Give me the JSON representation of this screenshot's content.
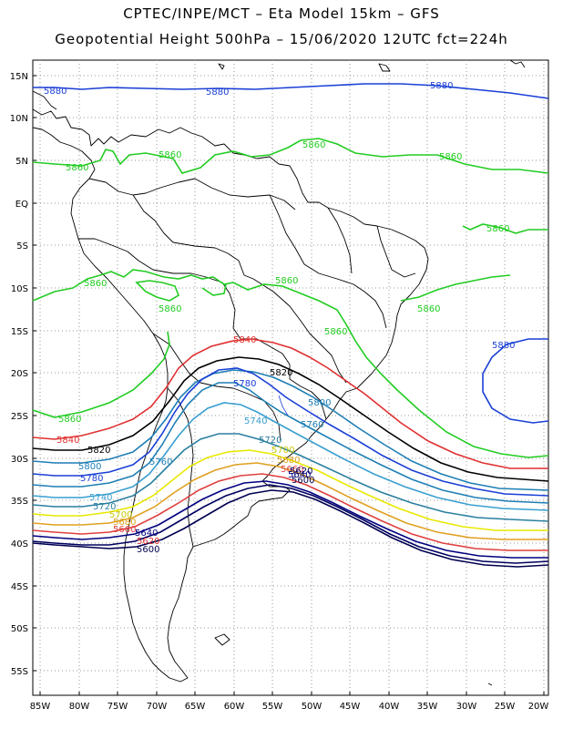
{
  "title_line1": "CPTEC/INPE/MCT –  Eta Model 15km – GFS",
  "title_line2": "Geopotential Height 500hPa – 15/06/2020 12UTC fct=224h",
  "lat_labels": [
    "15N",
    "10N",
    "5N",
    "EQ",
    "5S",
    "10S",
    "15S",
    "20S",
    "25S",
    "30S",
    "35S",
    "40S",
    "45S",
    "50S",
    "55S"
  ],
  "lon_labels": [
    "85W",
    "80W",
    "75W",
    "70W",
    "65W",
    "60W",
    "55W",
    "50W",
    "45W",
    "40W",
    "35W",
    "30W",
    "25W",
    "20W"
  ],
  "colors": {
    "5880": "#1a3fd6",
    "5860": "#22cc22",
    "5840": "#e03030",
    "5820": "#000000",
    "5800": "#1e7fb5",
    "5780": "#1a3fd6",
    "5760": "#1e7fb5",
    "5740": "#3a9fd0",
    "5720": "#2a7fa0",
    "5700": "#e8e800",
    "5680": "#e0a020",
    "5660": "#e04040",
    "5640": "#000080",
    "5620": "#000060",
    "5600": "#000050",
    "coast": "#000000",
    "grid": "#9a9a9a"
  },
  "contour_labels": [
    {
      "text": "5880",
      "color_key": "5880"
    },
    {
      "text": "5880",
      "color_key": "5880"
    },
    {
      "text": "5880",
      "color_key": "5880"
    },
    {
      "text": "5860",
      "color_key": "5860"
    },
    {
      "text": "5860",
      "color_key": "5860"
    },
    {
      "text": "5860",
      "color_key": "5860"
    },
    {
      "text": "5860",
      "color_key": "5860"
    },
    {
      "text": "5860",
      "color_key": "5860"
    },
    {
      "text": "5860",
      "color_key": "5860"
    },
    {
      "text": "5860",
      "color_key": "5860"
    },
    {
      "text": "5860",
      "color_key": "5860"
    },
    {
      "text": "5860",
      "color_key": "5860"
    },
    {
      "text": "5860",
      "color_key": "5860"
    },
    {
      "text": "5860",
      "color_key": "5860"
    },
    {
      "text": "5880",
      "color_key": "5880"
    },
    {
      "text": "5840",
      "color_key": "5840"
    },
    {
      "text": "5820",
      "color_key": "5820"
    },
    {
      "text": "5780",
      "color_key": "5780"
    },
    {
      "text": "5800",
      "color_key": "5800"
    },
    {
      "text": "5760",
      "color_key": "5760"
    },
    {
      "text": "5740",
      "color_key": "5740"
    },
    {
      "text": "5720",
      "color_key": "5720"
    },
    {
      "text": "5700",
      "color_key": "5700"
    },
    {
      "text": "5680",
      "color_key": "5680"
    },
    {
      "text": "5660",
      "color_key": "5660"
    },
    {
      "text": "5640",
      "color_key": "5640"
    },
    {
      "text": "5620",
      "color_key": "5620"
    },
    {
      "text": "5600",
      "color_key": "5600"
    },
    {
      "text": "5840",
      "color_key": "5840"
    },
    {
      "text": "5820",
      "color_key": "5820"
    },
    {
      "text": "5800",
      "color_key": "5800"
    },
    {
      "text": "5780",
      "color_key": "5780"
    },
    {
      "text": "5760",
      "color_key": "5760"
    },
    {
      "text": "5740",
      "color_key": "5740"
    },
    {
      "text": "5720",
      "color_key": "5720"
    },
    {
      "text": "5700",
      "color_key": "5700"
    },
    {
      "text": "5680",
      "color_key": "5680"
    },
    {
      "text": "5660",
      "color_key": "5660"
    },
    {
      "text": "5640",
      "color_key": "5640"
    },
    {
      "text": "5620",
      "color_key": "5620"
    },
    {
      "text": "5600",
      "color_key": "5600"
    }
  ]
}
